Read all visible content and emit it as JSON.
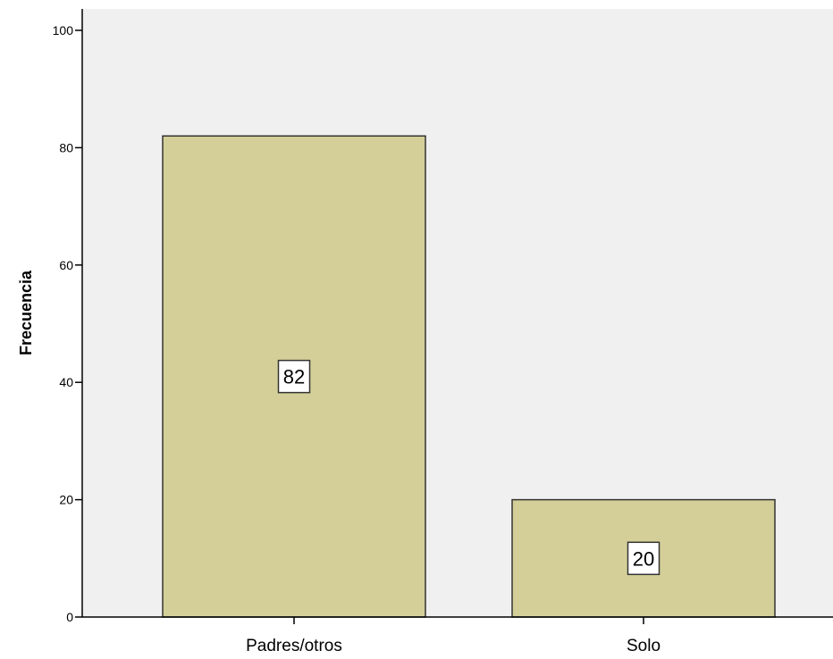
{
  "chart_data": {
    "type": "bar",
    "title": "",
    "xlabel": "",
    "ylabel": "Frecuencia",
    "categories": [
      "Padres/otros",
      "Solo"
    ],
    "values": [
      82,
      20
    ],
    "data_labels": [
      "82",
      "20"
    ],
    "ylim": [
      0,
      100
    ],
    "yticks": [
      "0",
      "20",
      "40",
      "60",
      "80",
      "100"
    ],
    "grid": false,
    "legend": "none",
    "colors": {
      "bar_fill": "#d4cf98",
      "bar_stroke": "#333333",
      "plot_background": "#f0f0f0",
      "axis": "#000000"
    }
  }
}
